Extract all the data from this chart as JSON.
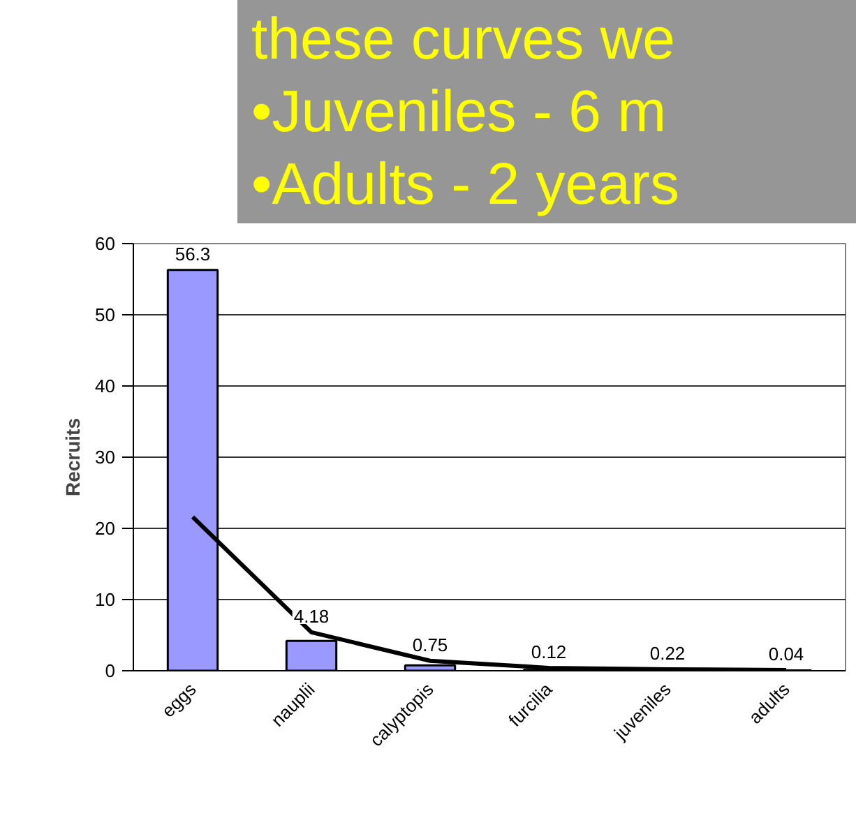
{
  "chart_data": {
    "type": "bar",
    "ylabel": "Recruits",
    "categories": [
      "eggs",
      "nauplii",
      "calyptopis",
      "furcilia",
      "juveniles",
      "adults"
    ],
    "ylim": [
      0,
      60
    ],
    "yticks": [
      0,
      10,
      20,
      30,
      40,
      50,
      60
    ],
    "grid": "y",
    "annotations": [
      "these curves we",
      "•Juveniles - 6 m",
      "•Adults - 2 years"
    ],
    "series": [
      {
        "color": "#9999ff",
        "values": [
          56.3,
          4.18,
          0.75,
          0.12,
          0.22,
          0.04
        ],
        "value_labels": [
          "56.3",
          "4.18",
          "0.75",
          "0.12",
          "0.22",
          "0.04"
        ]
      },
      {
        "type": "line",
        "color": "#000000",
        "values": [
          21.6,
          5.4,
          1.4,
          0.4,
          0.2,
          0.1
        ]
      }
    ]
  }
}
